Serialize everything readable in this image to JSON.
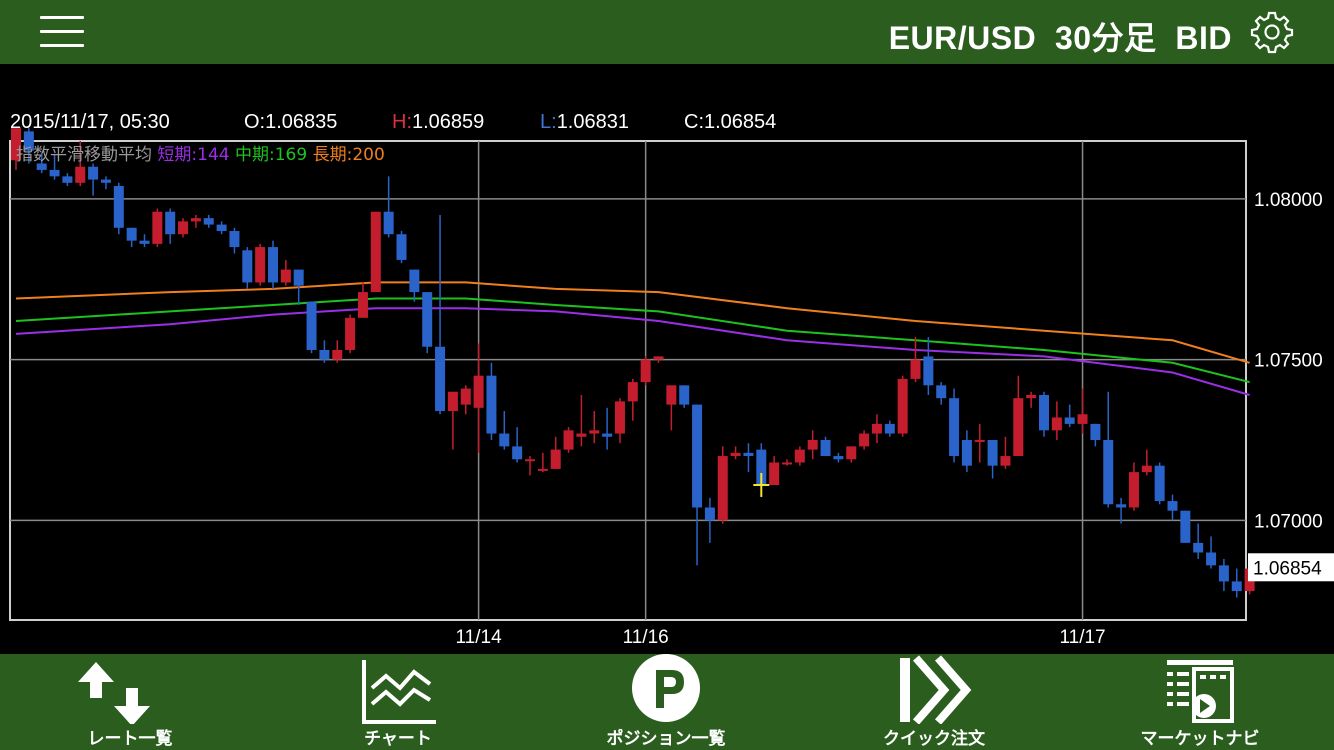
{
  "header": {
    "menu_icon": "hamburger-menu-icon",
    "title": "EUR/USD  30分足  BID",
    "settings_icon": "gear-icon"
  },
  "ohlc": {
    "datetime": "2015/11/17, 05:30",
    "o_label": "O:",
    "o_value": "1.06835",
    "h_label": "H:",
    "h_value": "1.06859",
    "l_label": "L:",
    "l_value": "1.06831",
    "c_label": "C:",
    "c_value": "1.06854"
  },
  "indicator": {
    "name": "指数平滑移動平均",
    "short_label": "短期:",
    "short_value": "144",
    "mid_label": "中期:",
    "mid_value": "169",
    "long_label": "長期:",
    "long_value": "200"
  },
  "colors": {
    "up": "#c41e2e",
    "down": "#2a63c9",
    "short": "#9b2fe6",
    "mid": "#1ec21e",
    "long": "#f07f1f",
    "bar": "#2b5d1f",
    "h_label": "#d9313c",
    "l_label": "#3e78d6"
  },
  "chart_data": {
    "type": "candlestick",
    "ylim": [
      1.0669,
      1.0818
    ],
    "y_ticks": [
      "1.08000",
      "1.07500",
      "1.07000"
    ],
    "x_ticks": [
      "11/14",
      "11/16",
      "11/17"
    ],
    "current_price_label": "1.06854",
    "candles": [
      [
        1.0812,
        1.0822,
        1.0809,
        1.0822
      ],
      [
        1.0821,
        1.0822,
        1.0811,
        1.0815
      ],
      [
        1.0811,
        1.0814,
        1.0808,
        1.0809
      ],
      [
        1.0809,
        1.0814,
        1.0806,
        1.0807
      ],
      [
        1.0807,
        1.0808,
        1.0804,
        1.0805
      ],
      [
        1.0805,
        1.0818,
        1.0804,
        1.081
      ],
      [
        1.081,
        1.0811,
        1.0801,
        1.0806
      ],
      [
        1.0806,
        1.0807,
        1.0803,
        1.0805
      ],
      [
        1.0804,
        1.0805,
        1.0789,
        1.0791
      ],
      [
        1.0791,
        1.0791,
        1.0785,
        1.0787
      ],
      [
        1.0787,
        1.0789,
        1.0785,
        1.0786
      ],
      [
        1.0786,
        1.0797,
        1.0785,
        1.0796
      ],
      [
        1.0796,
        1.0797,
        1.0786,
        1.0789
      ],
      [
        1.0789,
        1.0794,
        1.0788,
        1.0793
      ],
      [
        1.0793,
        1.0795,
        1.0791,
        1.0794
      ],
      [
        1.0794,
        1.0795,
        1.0791,
        1.0792
      ],
      [
        1.0792,
        1.0793,
        1.0789,
        1.079
      ],
      [
        1.079,
        1.0791,
        1.0783,
        1.0785
      ],
      [
        1.0784,
        1.0785,
        1.0772,
        1.0774
      ],
      [
        1.0774,
        1.0786,
        1.0773,
        1.0785
      ],
      [
        1.0785,
        1.0787,
        1.0772,
        1.0774
      ],
      [
        1.0774,
        1.0781,
        1.0773,
        1.0778
      ],
      [
        1.0778,
        1.0778,
        1.0767,
        1.0773
      ],
      [
        1.0768,
        1.0768,
        1.0752,
        1.0753
      ],
      [
        1.0753,
        1.0756,
        1.0749,
        1.075
      ],
      [
        1.075,
        1.0756,
        1.0749,
        1.0753
      ],
      [
        1.0753,
        1.0764,
        1.0752,
        1.0763
      ],
      [
        1.0763,
        1.0774,
        1.0763,
        1.0771
      ],
      [
        1.0771,
        1.0796,
        1.0771,
        1.0796
      ],
      [
        1.0796,
        1.0807,
        1.0788,
        1.0789
      ],
      [
        1.0789,
        1.079,
        1.078,
        1.0781
      ],
      [
        1.0778,
        1.0778,
        1.0768,
        1.0771
      ],
      [
        1.0771,
        1.0771,
        1.0752,
        1.0754
      ],
      [
        1.0754,
        1.0795,
        1.0733,
        1.0734
      ],
      [
        1.0734,
        1.0739,
        1.0722,
        1.074
      ],
      [
        1.0736,
        1.0742,
        1.0733,
        1.0741
      ],
      [
        1.0735,
        1.0755,
        1.0721,
        1.0745
      ],
      [
        1.0745,
        1.0749,
        1.0725,
        1.0727
      ],
      [
        1.0727,
        1.0734,
        1.0722,
        1.0723
      ],
      [
        1.0723,
        1.0729,
        1.0718,
        1.0719
      ],
      [
        1.0719,
        1.072,
        1.0714,
        1.0719
      ],
      [
        1.0716,
        1.0721,
        1.0715,
        1.0716
      ],
      [
        1.0716,
        1.0726,
        1.0716,
        1.0722
      ],
      [
        1.0722,
        1.0729,
        1.0721,
        1.0728
      ],
      [
        1.0726,
        1.0739,
        1.0723,
        1.0727
      ],
      [
        1.0727,
        1.0734,
        1.0724,
        1.0728
      ],
      [
        1.0727,
        1.0735,
        1.0722,
        1.0726
      ],
      [
        1.0727,
        1.0738,
        1.0724,
        1.0737
      ],
      [
        1.0737,
        1.0744,
        1.0731,
        1.0743
      ],
      [
        1.0743,
        1.0751,
        1.0742,
        1.075
      ],
      [
        1.075,
        1.0751,
        1.0749,
        1.0751
      ],
      [
        1.0736,
        1.0742,
        1.0728,
        1.0742
      ],
      [
        1.0742,
        1.0742,
        1.0735,
        1.0736
      ],
      [
        1.0736,
        1.0736,
        1.0686,
        1.0704
      ],
      [
        1.0704,
        1.0707,
        1.0693,
        1.07
      ],
      [
        1.07,
        1.0723,
        1.0699,
        1.072
      ],
      [
        1.072,
        1.0723,
        1.0719,
        1.0721
      ],
      [
        1.0721,
        1.0724,
        1.0715,
        1.072
      ],
      [
        1.0722,
        1.0724,
        1.0711,
        1.0711
      ],
      [
        1.0711,
        1.072,
        1.0711,
        1.0718
      ],
      [
        1.0718,
        1.0719,
        1.0717,
        1.0718
      ],
      [
        1.0718,
        1.0723,
        1.0717,
        1.0722
      ],
      [
        1.0722,
        1.0728,
        1.0719,
        1.0725
      ],
      [
        1.0725,
        1.0726,
        1.072,
        1.072
      ],
      [
        1.072,
        1.0721,
        1.0718,
        1.0719
      ],
      [
        1.0719,
        1.0723,
        1.0718,
        1.0723
      ],
      [
        1.0723,
        1.0728,
        1.0722,
        1.0727
      ],
      [
        1.0727,
        1.0733,
        1.0724,
        1.073
      ],
      [
        1.073,
        1.0731,
        1.0726,
        1.0727
      ],
      [
        1.0727,
        1.0745,
        1.0726,
        1.0744
      ],
      [
        1.0744,
        1.0757,
        1.0743,
        1.075
      ],
      [
        1.0751,
        1.0757,
        1.0739,
        1.0742
      ],
      [
        1.0742,
        1.0743,
        1.0736,
        1.0738
      ],
      [
        1.0738,
        1.0741,
        1.0718,
        1.072
      ],
      [
        1.0725,
        1.0728,
        1.0715,
        1.0717
      ],
      [
        1.0725,
        1.073,
        1.0718,
        1.0725
      ],
      [
        1.0725,
        1.0725,
        1.0713,
        1.0717
      ],
      [
        1.0717,
        1.0726,
        1.0716,
        1.072
      ],
      [
        1.072,
        1.0745,
        1.072,
        1.0738
      ],
      [
        1.0738,
        1.074,
        1.0735,
        1.0739
      ],
      [
        1.0739,
        1.074,
        1.0726,
        1.0728
      ],
      [
        1.0728,
        1.0737,
        1.0725,
        1.0732
      ],
      [
        1.0732,
        1.0736,
        1.0729,
        1.073
      ],
      [
        1.073,
        1.0741,
        1.0727,
        1.0733
      ],
      [
        1.073,
        1.073,
        1.0723,
        1.0725
      ],
      [
        1.0725,
        1.074,
        1.0704,
        1.0705
      ],
      [
        1.0705,
        1.0707,
        1.0699,
        1.0704
      ],
      [
        1.0704,
        1.0718,
        1.0703,
        1.0715
      ],
      [
        1.0715,
        1.0722,
        1.0714,
        1.0717
      ],
      [
        1.0717,
        1.0718,
        1.0705,
        1.0706
      ],
      [
        1.0706,
        1.0708,
        1.07,
        1.0703
      ],
      [
        1.0703,
        1.0703,
        1.0693,
        1.0693
      ],
      [
        1.0693,
        1.0699,
        1.0688,
        1.069
      ],
      [
        1.069,
        1.0695,
        1.0685,
        1.0686
      ],
      [
        1.0686,
        1.0688,
        1.0678,
        1.0681
      ],
      [
        1.0681,
        1.0685,
        1.0676,
        1.0678
      ],
      [
        1.0678,
        1.0686,
        1.0677,
        1.0685
      ],
      [
        1.06835,
        1.06859,
        1.06831,
        1.06854
      ]
    ],
    "ema_short": [
      [
        0,
        1.0758
      ],
      [
        12,
        1.0761
      ],
      [
        20,
        1.0764
      ],
      [
        28,
        1.0766
      ],
      [
        35,
        1.0766
      ],
      [
        42,
        1.0765
      ],
      [
        50,
        1.0762
      ],
      [
        60,
        1.0756
      ],
      [
        70,
        1.0753
      ],
      [
        80,
        1.0751
      ],
      [
        90,
        1.0746
      ],
      [
        96,
        1.0739
      ]
    ],
    "ema_mid": [
      [
        0,
        1.0762
      ],
      [
        12,
        1.0765
      ],
      [
        20,
        1.0767
      ],
      [
        28,
        1.0769
      ],
      [
        35,
        1.0769
      ],
      [
        42,
        1.0767
      ],
      [
        50,
        1.0765
      ],
      [
        60,
        1.0759
      ],
      [
        70,
        1.0756
      ],
      [
        80,
        1.0753
      ],
      [
        90,
        1.0749
      ],
      [
        96,
        1.0743
      ]
    ],
    "ema_long": [
      [
        0,
        1.0769
      ],
      [
        12,
        1.0771
      ],
      [
        20,
        1.0772
      ],
      [
        28,
        1.0774
      ],
      [
        35,
        1.0774
      ],
      [
        42,
        1.0772
      ],
      [
        50,
        1.0771
      ],
      [
        60,
        1.0766
      ],
      [
        70,
        1.0762
      ],
      [
        80,
        1.0759
      ],
      [
        90,
        1.0756
      ],
      [
        96,
        1.0749
      ]
    ],
    "crosshair_index": 58
  },
  "nav": [
    {
      "label": "レート一覧",
      "icon": "rate-list-arrows-icon"
    },
    {
      "label": "チャート",
      "icon": "chart-line-icon"
    },
    {
      "label": "ポジション一覧",
      "icon": "position-p-icon"
    },
    {
      "label": "クイック注文",
      "icon": "quick-order-icon"
    },
    {
      "label": "マーケットナビ",
      "icon": "market-navi-icon"
    }
  ]
}
